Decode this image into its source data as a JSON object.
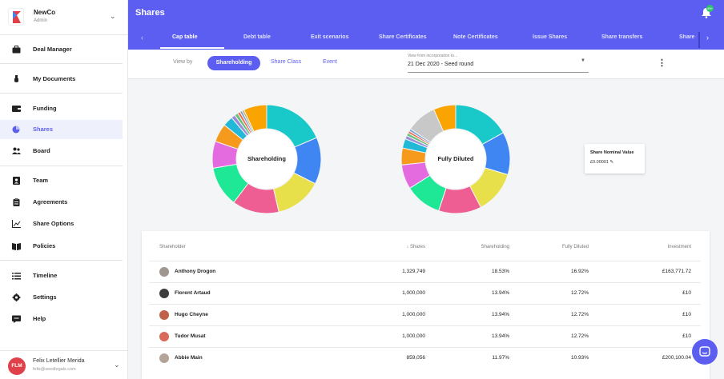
{
  "org": {
    "name": "NewCo",
    "role": "Admin"
  },
  "sidebar": {
    "items": [
      {
        "label": "Deal Manager",
        "icon": "briefcase-icon"
      },
      {
        "label": "My Documents",
        "icon": "hand-icon"
      },
      {
        "label": "Funding",
        "icon": "wallet-icon"
      },
      {
        "label": "Shares",
        "icon": "pie-icon",
        "active": true
      },
      {
        "label": "Board",
        "icon": "people-icon"
      },
      {
        "label": "Team",
        "icon": "contact-icon"
      },
      {
        "label": "Agreements",
        "icon": "clipboard-icon"
      },
      {
        "label": "Share Options",
        "icon": "chart-icon"
      },
      {
        "label": "Policies",
        "icon": "book-icon"
      },
      {
        "label": "Timeline",
        "icon": "list-icon"
      },
      {
        "label": "Settings",
        "icon": "gear-icon"
      },
      {
        "label": "Help",
        "icon": "chat-icon"
      }
    ]
  },
  "user": {
    "initials": "FLM",
    "name": "Felix Letellier Merida",
    "email": "felix@seedlegals.com"
  },
  "header": {
    "title": "Shares",
    "notification_count": "99+"
  },
  "tabs": [
    "Cap table",
    "Debt table",
    "Exit scenarios",
    "Share Certificates",
    "Note Certificates",
    "Issue Shares",
    "Share transfers",
    "Share s"
  ],
  "toolbar": {
    "view_by": "View by",
    "segments": [
      "Shareholding",
      "Share Class",
      "Event"
    ],
    "select_label": "View from incorporation to...",
    "select_value": "21 Dec 2020 - Seed round"
  },
  "charts": [
    {
      "label": "Shareholding",
      "segments": [
        {
          "value": 18.53,
          "color": "#19c9c9"
        },
        {
          "value": 13.94,
          "color": "#3f86f2"
        },
        {
          "value": 13.94,
          "color": "#e8e04a"
        },
        {
          "value": 13.94,
          "color": "#ee5e93"
        },
        {
          "value": 11.97,
          "color": "#1ee896"
        },
        {
          "value": 8.0,
          "color": "#e46ae0"
        },
        {
          "value": 5.5,
          "color": "#f59a1c"
        },
        {
          "value": 3.0,
          "color": "#22b8d8"
        },
        {
          "value": 1.2,
          "color": "#9b8bd6"
        },
        {
          "value": 1.0,
          "color": "#66c27a"
        },
        {
          "value": 0.8,
          "color": "#f06b4a"
        },
        {
          "value": 0.7,
          "color": "#7aa0d8"
        },
        {
          "value": 0.6,
          "color": "#c7a85b"
        },
        {
          "value": 6.88,
          "color": "#f9a400"
        }
      ]
    },
    {
      "label": "Fully Diluted",
      "segments": [
        {
          "value": 16.92,
          "color": "#19c9c9"
        },
        {
          "value": 12.72,
          "color": "#3f86f2"
        },
        {
          "value": 12.72,
          "color": "#e8e04a"
        },
        {
          "value": 12.72,
          "color": "#ee5e93"
        },
        {
          "value": 10.93,
          "color": "#1ee896"
        },
        {
          "value": 7.3,
          "color": "#e46ae0"
        },
        {
          "value": 5.0,
          "color": "#f59a1c"
        },
        {
          "value": 2.8,
          "color": "#22b8d8"
        },
        {
          "value": 1.0,
          "color": "#9b8bd6"
        },
        {
          "value": 0.9,
          "color": "#66c27a"
        },
        {
          "value": 0.7,
          "color": "#f06b4a"
        },
        {
          "value": 0.7,
          "color": "#7aa0d8"
        },
        {
          "value": 9.0,
          "color": "#c8c8c8"
        },
        {
          "value": 6.61,
          "color": "#f9a400"
        }
      ]
    }
  ],
  "nominal": {
    "title": "Share Nominal Value",
    "value": "£0.00001"
  },
  "table": {
    "headers": [
      "Shareholder",
      "Shares",
      "Shareholding",
      "Fully Diluted",
      "Investment"
    ],
    "rows": [
      {
        "name": "Anthony Drogon",
        "shares": "1,329,749",
        "shareholding": "18.53%",
        "diluted": "16.92%",
        "investment": "£163,771.72"
      },
      {
        "name": "Florent Artaud",
        "shares": "1,000,000",
        "shareholding": "13.94%",
        "diluted": "12.72%",
        "investment": "£10"
      },
      {
        "name": "Hugo Cheyne",
        "shares": "1,000,000",
        "shareholding": "13.94%",
        "diluted": "12.72%",
        "investment": "£10"
      },
      {
        "name": "Tudor Musat",
        "shares": "1,000,000",
        "shareholding": "13.94%",
        "diluted": "12.72%",
        "investment": "£10"
      },
      {
        "name": "Abbie Main",
        "shares": "859,056",
        "shareholding": "11.97%",
        "diluted": "10.93%",
        "investment": "£200,100.04"
      }
    ]
  }
}
